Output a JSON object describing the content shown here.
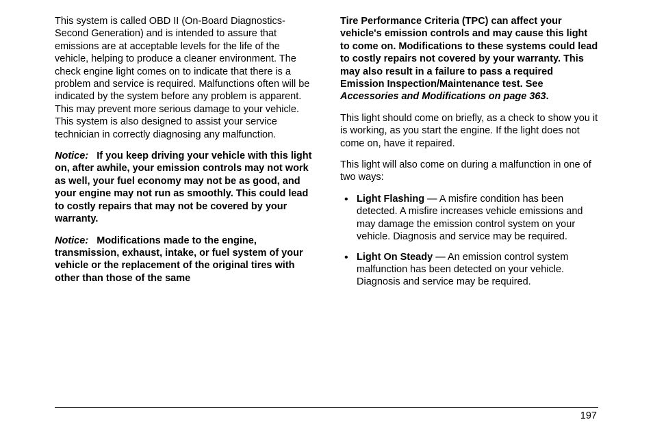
{
  "leftColumn": {
    "para1": "This system is called OBD II (On-Board Diagnostics-Second Generation) and is intended to assure that emissions are at acceptable levels for the life of the vehicle, helping to produce a cleaner environment. The check engine light comes on to indicate that there is a problem and service is required. Malfunctions often will be indicated by the system before any problem is apparent. This may prevent more serious damage to your vehicle. This system is also designed to assist your service technician in correctly diagnosing any malfunction.",
    "notice1Label": "Notice:",
    "notice1Text": "If you keep driving your vehicle with this light on, after awhile, your emission controls may not work as well, your fuel economy may not be as good, and your engine may not run as smoothly. This could lead to costly repairs that may not be covered by your warranty.",
    "notice2Label": "Notice:",
    "notice2Text": "Modifications made to the engine, transmission, exhaust, intake, or fuel system of your vehicle or the replacement of the original tires with other than those of the same"
  },
  "rightColumn": {
    "continuedText": "Tire Performance Criteria (TPC) can affect your vehicle's emission controls and may cause this light to come on. Modifications to these systems could lead to costly repairs not covered by your warranty. This may also result in a failure to pass a required Emission Inspection/Maintenance test. See ",
    "accessoriesLink": "Accessories and Modifications on page 363",
    "period": ".",
    "para2": "This light should come on briefly, as a check to show you it is working, as you start the engine. If the light does not come on, have it repaired.",
    "para3": "This light will also come on during a malfunction in one of two ways:",
    "bullet1Title": "Light Flashing",
    "bullet1Text": " — A misfire condition has been detected. A misfire increases vehicle emissions and may damage the emission control system on your vehicle. Diagnosis and service may be required.",
    "bullet2Title": "Light On Steady",
    "bullet2Text": " — An emission control system malfunction has been detected on your vehicle. Diagnosis and service may be required."
  },
  "pageNumber": "197",
  "styling": {
    "bodyFontSize": 14.5,
    "lineHeight": 1.27,
    "textColor": "#000000",
    "backgroundColor": "#ffffff",
    "pageWidth": 954,
    "pageHeight": 636,
    "contentPaddingLeft": 80,
    "contentPaddingRight": 80,
    "contentPaddingTop": 22,
    "columnGap": 40,
    "paragraphSpacing": 13
  }
}
